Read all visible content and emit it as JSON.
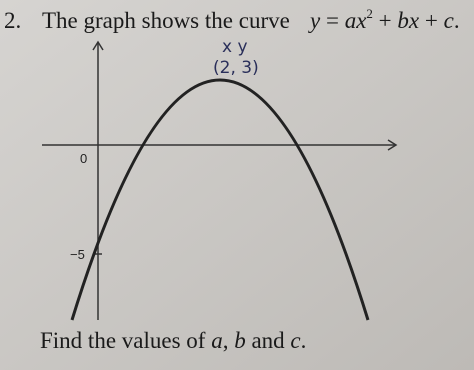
{
  "question": {
    "number": "2.",
    "text": "The graph shows the curve",
    "equation": {
      "lhs": "y",
      "equals": "=",
      "term1": "ax",
      "exponent": "2",
      "plus1": "+",
      "term2": "bx",
      "plus2": "+",
      "term3": "c",
      "end": "."
    },
    "task": {
      "start": "Find the values of",
      "a": "a",
      "sep1": ",",
      "b": "b",
      "and": "and",
      "c": "c",
      "end": "."
    }
  },
  "graph": {
    "origin_label": "0",
    "intercept_label": "−5"
  },
  "handwriting": {
    "labels": "x y",
    "point": "(2, 3)"
  }
}
